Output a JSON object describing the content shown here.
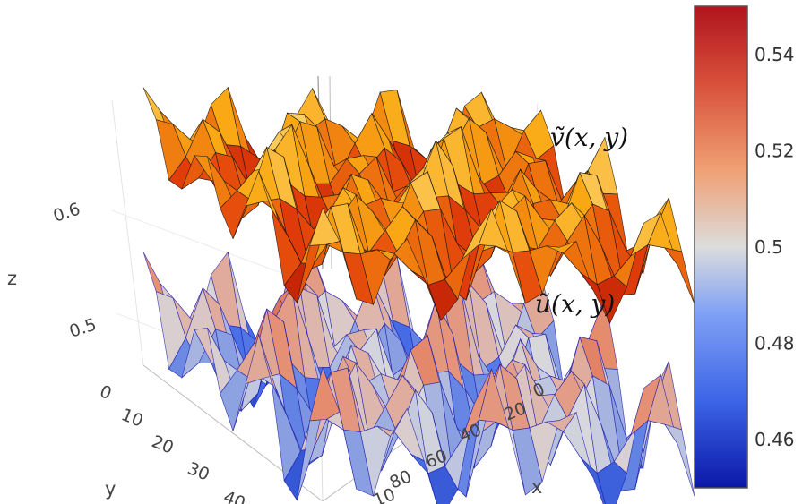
{
  "chart_data": {
    "type": "surface3d",
    "surfaces": [
      {
        "name": "ṽ(x, y)",
        "level": 0.64,
        "amplitude": 0.045,
        "colorscale": "hot"
      },
      {
        "name": "ũ(x, y)",
        "level": 0.5,
        "amplitude": 0.06,
        "colorscale": "coolwarm"
      }
    ],
    "x_ticks": [
      "0",
      "20",
      "40",
      "60",
      "80",
      "10"
    ],
    "y_ticks": [
      "0",
      "10",
      "20",
      "30",
      "40"
    ],
    "z_ticks": [
      "0.6",
      "0.5"
    ],
    "xlabel": "x",
    "ylabel": "y",
    "zlabel": "z",
    "xlim": [
      0,
      100
    ],
    "ylim": [
      0,
      45
    ],
    "colorbar": {
      "range": [
        0.45,
        0.55
      ],
      "ticks": [
        "0.54",
        "0.52",
        "0.5",
        "0.48",
        "0.46"
      ],
      "tick_values": [
        0.54,
        0.52,
        0.5,
        0.48,
        0.46
      ],
      "colors": [
        "#0a18a8",
        "#3c64e6",
        "#7ea0f5",
        "#dcdcdc",
        "#f0a074",
        "#d8503a",
        "#b0141e"
      ]
    }
  }
}
